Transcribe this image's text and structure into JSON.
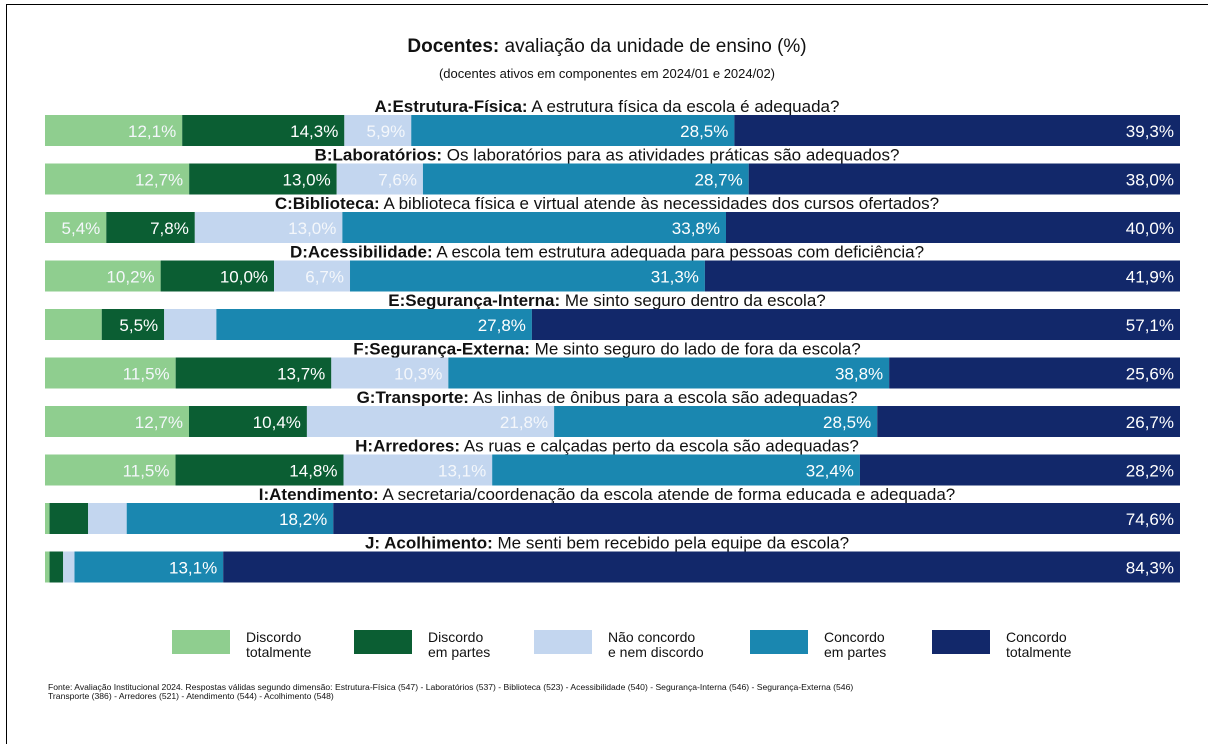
{
  "title": {
    "bold": "Docentes:",
    "rest": " avaliação da unidade de ensino (%)"
  },
  "subtitle": "(docentes ativos em componentes em 2024/01 e 2024/02)",
  "colors": {
    "discordo_totalmente": "#8fce8f",
    "discordo_em_partes": "#0b5e33",
    "nao_concordo_nem_discordo": "#c3d6ef",
    "concordo_em_partes": "#1a87b0",
    "concordo_totalmente": "#12286a"
  },
  "legend": [
    {
      "line1": "Discordo",
      "line2": "totalmente",
      "color": "#8fce8f"
    },
    {
      "line1": "Discordo",
      "line2": "em partes",
      "color": "#0b5e33"
    },
    {
      "line1": "Não concordo",
      "line2": "e nem discordo",
      "color": "#c3d6ef"
    },
    {
      "line1": "Concordo",
      "line2": "em partes",
      "color": "#1a87b0"
    },
    {
      "line1": "Concordo",
      "line2": "totalmente",
      "color": "#12286a"
    }
  ],
  "chart_data": {
    "type": "bar",
    "orientation": "horizontal",
    "stacked": true,
    "unit": "%",
    "xlim": [
      0,
      100
    ],
    "grid": false,
    "legend_position": "bottom",
    "series": [
      {
        "name": "Discordo totalmente",
        "values": [
          12.1,
          12.7,
          5.4,
          10.2,
          5.0,
          11.5,
          12.7,
          11.5,
          0.4,
          0.4
        ]
      },
      {
        "name": "Discordo em partes",
        "values": [
          14.3,
          13.0,
          7.8,
          10.0,
          5.5,
          13.7,
          10.4,
          14.8,
          3.4,
          1.2
        ]
      },
      {
        "name": "Não concordo e nem discordo",
        "values": [
          5.9,
          7.6,
          13.0,
          6.7,
          4.6,
          10.3,
          21.8,
          13.1,
          3.4,
          1.0
        ]
      },
      {
        "name": "Concordo em partes",
        "values": [
          28.5,
          28.7,
          33.8,
          31.3,
          27.8,
          38.8,
          28.5,
          32.4,
          18.2,
          13.1
        ]
      },
      {
        "name": "Concordo totalmente",
        "values": [
          39.3,
          38.0,
          40.0,
          41.9,
          57.1,
          25.6,
          26.7,
          28.2,
          74.6,
          84.3
        ]
      }
    ],
    "labels": [
      [
        "12,1%",
        "14,3%",
        "5,9%",
        "28,5%",
        "39,3%"
      ],
      [
        "12,7%",
        "13,0%",
        "7,6%",
        "28,7%",
        "38,0%"
      ],
      [
        "5,4%",
        "7,8%",
        "13,0%",
        "33,8%",
        "40,0%"
      ],
      [
        "10,2%",
        "10,0%",
        "6,7%",
        "31,3%",
        "41,9%"
      ],
      [
        "",
        "5,5%",
        "",
        "27,8%",
        "57,1%"
      ],
      [
        "11,5%",
        "13,7%",
        "10,3%",
        "38,8%",
        "25,6%"
      ],
      [
        "12,7%",
        "10,4%",
        "21,8%",
        "28,5%",
        "26,7%"
      ],
      [
        "11,5%",
        "14,8%",
        "13,1%",
        "32,4%",
        "28,2%"
      ],
      [
        "",
        "",
        "",
        "18,2%",
        "74,6%"
      ],
      [
        "",
        "",
        "",
        "13,1%",
        "84,3%"
      ]
    ],
    "categories": [
      {
        "bold": "A:Estrutura-Física:",
        "rest": " A estrutura física da escola é adequada?"
      },
      {
        "bold": "B:Laboratórios:",
        "rest": " Os laboratórios para as atividades práticas são adequados?"
      },
      {
        "bold": "C:Biblioteca:",
        "rest": " A biblioteca física e virtual atende às necessidades dos cursos ofertados?"
      },
      {
        "bold": "D:Acessibilidade:",
        "rest": " A escola tem estrutura adequada para pessoas com deficiência?"
      },
      {
        "bold": "E:Segurança-Interna:",
        "rest": " Me sinto seguro dentro da escola?"
      },
      {
        "bold": "F:Segurança-Externa:",
        "rest": " Me sinto seguro do lado de fora da escola?"
      },
      {
        "bold": "G:Transporte:",
        "rest": " As linhas de ônibus para a escola são adequadas?"
      },
      {
        "bold": "H:Arredores:",
        "rest": " As ruas e calçadas perto da escola são adequadas?"
      },
      {
        "bold": "I:Atendimento:",
        "rest": " A secretaria/coordenação da escola atende de forma educada e adequada?"
      },
      {
        "bold": "J: Acolhimento:",
        "rest": " Me senti bem recebido pela equipe da escola?"
      }
    ]
  },
  "footnote": {
    "line1": "Fonte: Avaliação Institucional 2024. Respostas válidas segundo dimensão: Estrutura-Física (547) - Laboratórios (537) - Biblioteca (523) - Acessibilidade (540) - Segurança-Interna (546) - Segurança-Externa (546)",
    "line2": "Transporte (386) - Arredores (521) - Atendimento (544) - Acolhimento (548)"
  }
}
